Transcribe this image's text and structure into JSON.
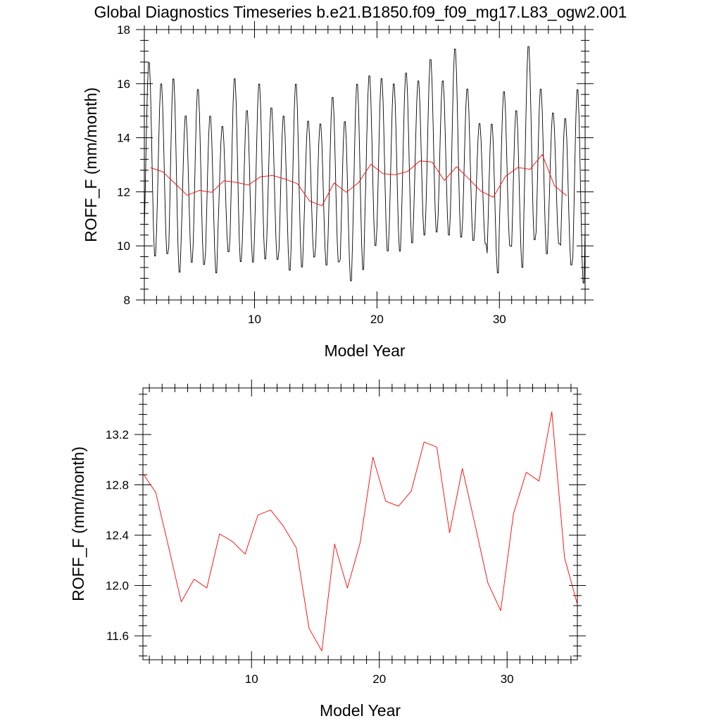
{
  "page_title": "Global Diagnostics Timeseries b.e21.B1850.f09_f09_mg17.L83_ogw2.001",
  "chart_data": [
    {
      "type": "line",
      "xlabel": "Model Year",
      "ylabel": "ROFF_F (mm/month)",
      "xlim": [
        1,
        37
      ],
      "ylim": [
        8,
        18
      ],
      "xticks": [
        10,
        20,
        30
      ],
      "yticks": [
        8,
        10,
        12,
        14,
        16,
        18
      ],
      "grid": false,
      "series": [
        {
          "kind": "monthly",
          "color": "#000000",
          "annual_min": [
            9.5,
            9.6,
            8.9,
            9.3,
            9.2,
            8.9,
            9.7,
            9.3,
            9.3,
            9.4,
            9.4,
            9.0,
            9.1,
            9.5,
            9.2,
            9.3,
            8.6,
            9.0,
            9.9,
            9.7,
            9.7,
            10.0,
            10.3,
            10.4,
            10.3,
            10.2,
            10.1,
            10.0,
            8.9,
            9.9,
            9.1,
            10.1,
            9.6,
            10.0,
            9.2,
            8.5,
            9.8
          ],
          "annual_max": [
            16.9,
            16.1,
            16.3,
            14.9,
            15.9,
            14.9,
            14.5,
            16.3,
            15.1,
            16.1,
            15.2,
            14.9,
            16.1,
            14.7,
            14.6,
            15.6,
            14.7,
            16.1,
            16.4,
            16.3,
            16.1,
            16.5,
            16.2,
            17.0,
            16.2,
            17.4,
            15.9,
            14.6,
            14.6,
            15.8,
            15.1,
            17.5,
            15.9,
            15.0,
            14.8,
            15.9,
            15.5
          ]
        },
        {
          "kind": "annual",
          "color": "#ff0000",
          "x": [
            1.5,
            2.5,
            3.5,
            4.5,
            5.5,
            6.5,
            7.5,
            8.5,
            9.5,
            10.5,
            11.5,
            12.5,
            13.5,
            14.5,
            15.5,
            16.5,
            17.5,
            18.5,
            19.5,
            20.5,
            21.5,
            22.5,
            23.5,
            24.5,
            25.5,
            26.5,
            27.5,
            28.5,
            29.5,
            30.5,
            31.5,
            32.5,
            33.5,
            34.5,
            35.5
          ],
          "values": [
            12.89,
            12.74,
            12.31,
            11.87,
            12.05,
            11.98,
            12.41,
            12.35,
            12.25,
            12.56,
            12.6,
            12.47,
            12.3,
            11.66,
            11.48,
            12.33,
            11.98,
            12.34,
            13.02,
            12.67,
            12.63,
            12.75,
            13.14,
            13.1,
            12.42,
            12.93,
            12.48,
            12.02,
            11.8,
            12.57,
            12.9,
            12.83,
            13.38,
            12.22,
            11.85
          ]
        }
      ]
    },
    {
      "type": "line",
      "xlabel": "Model Year",
      "ylabel": "ROFF_F (mm/month)",
      "xlim": [
        1.5,
        35.5
      ],
      "ylim": [
        11.41,
        13.57
      ],
      "xticks": [
        10,
        20,
        30
      ],
      "yticks": [
        11.6,
        12.0,
        12.4,
        12.8,
        13.2
      ],
      "ytick_labels": [
        "11.6",
        "12.0",
        "12.4",
        "12.8",
        "13.2"
      ],
      "grid": false,
      "series": [
        {
          "kind": "annual",
          "color": "#ff0000",
          "x": [
            1.5,
            2.5,
            3.5,
            4.5,
            5.5,
            6.5,
            7.5,
            8.5,
            9.5,
            10.5,
            11.5,
            12.5,
            13.5,
            14.5,
            15.5,
            16.5,
            17.5,
            18.5,
            19.5,
            20.5,
            21.5,
            22.5,
            23.5,
            24.5,
            25.5,
            26.5,
            27.5,
            28.5,
            29.5,
            30.5,
            31.5,
            32.5,
            33.5,
            34.5,
            35.5
          ],
          "values": [
            12.89,
            12.74,
            12.31,
            11.87,
            12.05,
            11.98,
            12.41,
            12.35,
            12.25,
            12.56,
            12.6,
            12.47,
            12.3,
            11.66,
            11.48,
            12.33,
            11.98,
            12.34,
            13.02,
            12.67,
            12.63,
            12.75,
            13.14,
            13.1,
            12.42,
            12.93,
            12.48,
            12.02,
            11.8,
            12.57,
            12.9,
            12.83,
            13.38,
            12.22,
            11.85
          ]
        }
      ]
    }
  ]
}
